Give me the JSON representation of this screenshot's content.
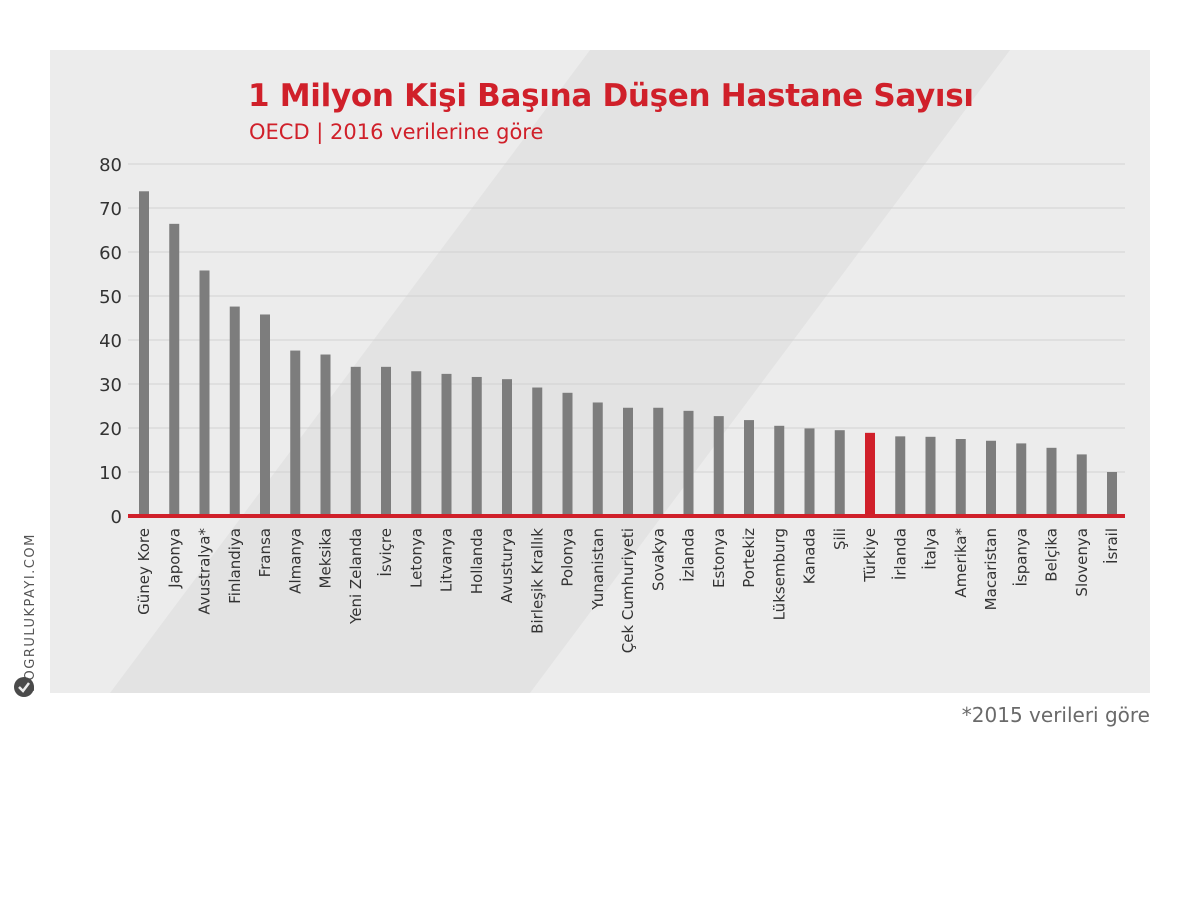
{
  "title": "1 Milyon Kişi Başına Düşen Hastane Sayısı",
  "subtitle": "OECD | 2016 verilerine göre",
  "footnote": "*2015 verileri göre",
  "brand": "DOGRULUKPAYI.COM",
  "colors": {
    "bar": "#7d7d7d",
    "highlight": "#d0202a",
    "accent": "#d0202a",
    "grid": "#d2d2d2",
    "axis_text": "#333333"
  },
  "chart_data": {
    "type": "bar",
    "title": "1 Milyon Kişi Başına Düşen Hastane Sayısı",
    "subtitle": "OECD | 2016 verilerine göre",
    "xlabel": "",
    "ylabel": "",
    "ylim": [
      0,
      80
    ],
    "yticks": [
      0,
      10,
      20,
      30,
      40,
      50,
      60,
      70,
      80
    ],
    "grid": true,
    "highlight": "Türkiye",
    "categories": [
      "Güney Kore",
      "Japonya",
      "Avustralya*",
      "Finlandiya",
      "Fransa",
      "Almanya",
      "Meksika",
      "Yeni Zelanda",
      "İsviçre",
      "Letonya",
      "Litvanya",
      "Hollanda",
      "Avusturya",
      "Birleşik Krallık",
      "Polonya",
      "Yunanistan",
      "Çek Cumhuriyeti",
      "Sovakya",
      "İzlanda",
      "Estonya",
      "Portekiz",
      "Lüksemburg",
      "Kanada",
      "Şili",
      "Türkiye",
      "İrlanda",
      "İtalya",
      "Amerika*",
      "Macaristan",
      "İspanya",
      "Belçika",
      "Slovenya",
      "İsrail"
    ],
    "values": [
      73.8,
      66.4,
      55.8,
      47.6,
      45.8,
      37.6,
      36.7,
      33.9,
      33.9,
      32.9,
      32.3,
      31.6,
      31.1,
      29.2,
      28.0,
      25.8,
      24.6,
      24.6,
      23.9,
      22.7,
      21.8,
      20.5,
      19.9,
      19.5,
      18.9,
      18.1,
      18.0,
      17.5,
      17.1,
      16.5,
      15.5,
      14.0,
      10.0
    ]
  }
}
